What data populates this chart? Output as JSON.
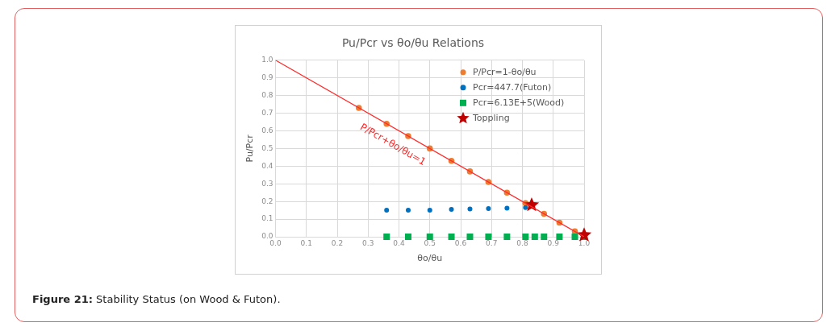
{
  "chart_data": {
    "type": "scatter",
    "title": "Pu/Pcr vs θo/θu Relations",
    "xlabel": "θo/θu",
    "ylabel": "Pu/Pcr",
    "xlim": [
      0,
      1
    ],
    "ylim": [
      0,
      1
    ],
    "xticks": [
      {
        "value": 0,
        "label": "0.0"
      },
      0.1,
      0.2,
      0.3,
      0.4,
      0.5,
      0.6,
      0.7,
      0.8,
      0.9,
      {
        "value": 1,
        "label": "1.0"
      }
    ],
    "yticks": [
      {
        "value": 0,
        "label": "0.0"
      },
      0.1,
      0.2,
      0.3,
      0.4,
      0.5,
      0.6,
      0.7,
      0.8,
      0.9,
      {
        "value": 1,
        "label": "1.0"
      }
    ],
    "grid": true,
    "legend": "top right",
    "series": [
      {
        "type": "line",
        "color": "#ff2a2a",
        "marker": "none",
        "x": [
          0,
          1
        ],
        "values": [
          1,
          0
        ]
      },
      {
        "name": "P/Pcr=1-θo/θu",
        "color": "#ed7d31",
        "marker": "circle",
        "x": [
          0.27,
          0.36,
          0.43,
          0.5,
          0.57,
          0.63,
          0.69,
          0.75,
          0.81,
          0.87,
          0.92,
          0.97
        ],
        "values": [
          0.73,
          0.64,
          0.57,
          0.5,
          0.43,
          0.37,
          0.31,
          0.25,
          0.19,
          0.13,
          0.08,
          0.03
        ]
      },
      {
        "name": "Pcr=447.7(Futon)",
        "color": "#0070c0",
        "marker": "circle",
        "x": [
          0.36,
          0.43,
          0.5,
          0.57,
          0.63,
          0.69,
          0.75,
          0.81
        ],
        "values": [
          0.15,
          0.15,
          0.15,
          0.155,
          0.157,
          0.16,
          0.162,
          0.165
        ]
      },
      {
        "name": "Pcr=6.13E+5(Wood)",
        "color": "#00b050",
        "marker": "square",
        "x": [
          0.36,
          0.43,
          0.5,
          0.57,
          0.63,
          0.69,
          0.75,
          0.81,
          0.84,
          0.87,
          0.92,
          0.97,
          1.0
        ],
        "values": [
          0,
          0,
          0,
          0,
          0,
          0,
          0,
          0,
          0,
          0,
          0,
          0,
          0
        ]
      },
      {
        "name": "Toppling",
        "color": "#c00000",
        "marker": "star",
        "x": [
          0.83,
          1.0
        ],
        "values": [
          0.18,
          0.01
        ]
      }
    ],
    "annotations": [
      "P/Pcr+θo/θu=1",
      "Figure 21: Stability Status (on Wood & Futon)."
    ]
  }
}
